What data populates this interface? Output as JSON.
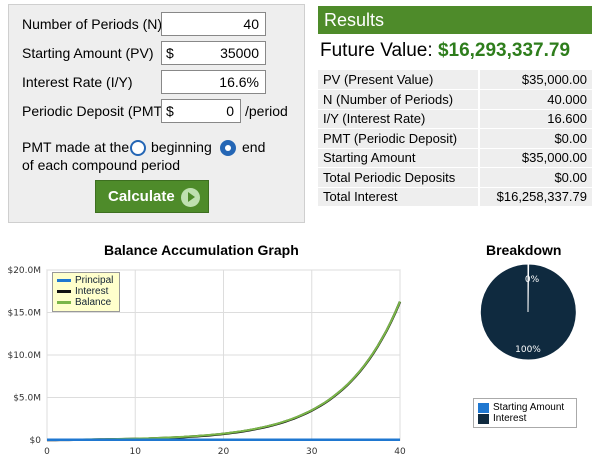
{
  "form": {
    "periods": {
      "label": "Number of Periods (N)",
      "value": "40"
    },
    "start": {
      "label": "Starting Amount (PV)",
      "prefix": "$",
      "value": "35000"
    },
    "rate": {
      "label": "Interest Rate (I/Y)",
      "value": "16.6%"
    },
    "deposit": {
      "label": "Periodic Deposit (PMT)",
      "prefix": "$",
      "value": "0",
      "unit": "/period"
    },
    "pmt_text_1": "PMT made at the",
    "pmt_text_2": "of each compound period",
    "option_beginning": "beginning",
    "option_end": "end",
    "selected_option": "end",
    "calculate_label": "Calculate"
  },
  "results": {
    "header": "Results",
    "fv_label": "Future Value:",
    "fv_value": "$16,293,337.79",
    "rows": [
      {
        "label": "PV (Present Value)",
        "value": "$35,000.00"
      },
      {
        "label": "N (Number of Periods)",
        "value": "40.000"
      },
      {
        "label": "I/Y (Interest Rate)",
        "value": "16.600"
      },
      {
        "label": "PMT (Periodic Deposit)",
        "value": "$0.00"
      },
      {
        "label": "Starting Amount",
        "value": "$35,000.00"
      },
      {
        "label": "Total Periodic Deposits",
        "value": "$0.00"
      },
      {
        "label": "Total Interest",
        "value": "$16,258,337.79"
      }
    ]
  },
  "colors": {
    "principal": "#1f77d0",
    "interest": "#111111",
    "balance": "#7ab648",
    "pie_start": "#1f77d0",
    "pie_interest": "#0f2a3f"
  },
  "chart_data": [
    {
      "type": "line",
      "title": "Balance Accumulation Graph",
      "xlim": [
        0,
        40
      ],
      "ylim": [
        0,
        20000000
      ],
      "x_ticks": [
        "0",
        "10",
        "20",
        "30",
        "40"
      ],
      "y_ticks": [
        "$0",
        "$5.0M",
        "$10.0M",
        "$15.0M",
        "$20.0M"
      ],
      "grid": true,
      "legend_position": "top-left",
      "series": [
        {
          "name": "Principal",
          "start": 35000,
          "rate": 0.0,
          "note": "constant"
        },
        {
          "name": "Interest",
          "start": 0,
          "rate": 0.166
        },
        {
          "name": "Balance",
          "start": 35000,
          "rate": 0.166
        }
      ],
      "principal": 35000,
      "rate": 0.166,
      "periods": 40
    },
    {
      "type": "pie",
      "title": "Breakdown",
      "categories": [
        "Starting Amount",
        "Interest"
      ],
      "values": [
        0.21,
        99.79
      ],
      "slice_labels": [
        "0%",
        "100%"
      ],
      "legend_position": "bottom"
    }
  ]
}
